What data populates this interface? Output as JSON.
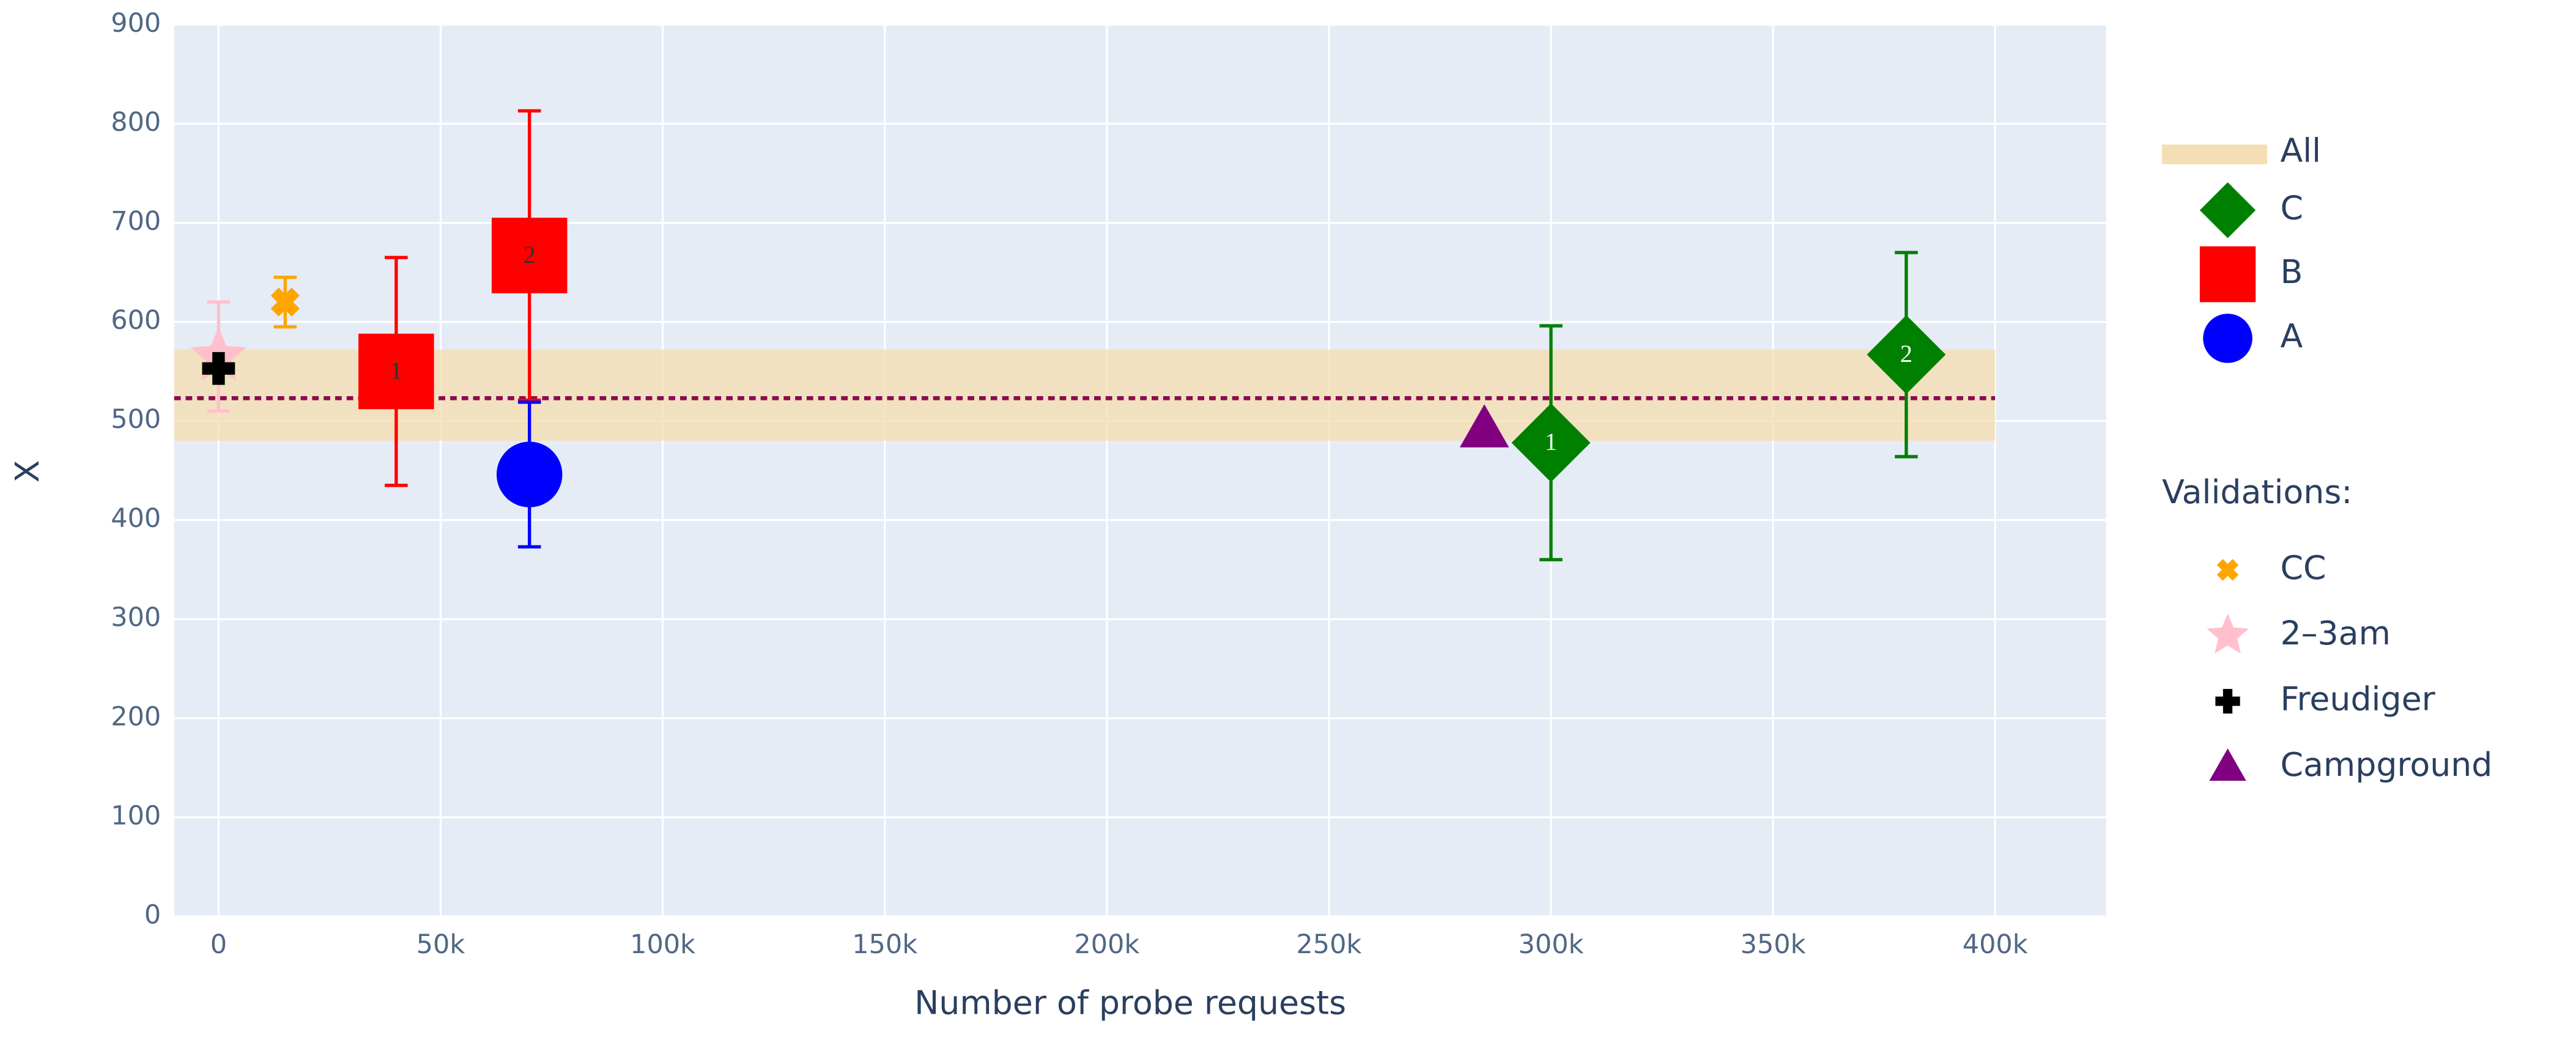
{
  "chart_data": {
    "type": "scatter",
    "x_label": "Number of probe requests",
    "y_label": "X",
    "xlim": [
      -10000,
      425000
    ],
    "ylim": [
      0,
      900
    ],
    "xticks": [
      0,
      {
        "value": 50000,
        "label": "50k"
      },
      {
        "value": 100000,
        "label": "100k"
      },
      {
        "value": 150000,
        "label": "150k"
      },
      {
        "value": 200000,
        "label": "200k"
      },
      {
        "value": 250000,
        "label": "250k"
      },
      {
        "value": 300000,
        "label": "300k"
      },
      {
        "value": 350000,
        "label": "350k"
      },
      {
        "value": 400000,
        "label": "400k"
      }
    ],
    "yticks": [
      0,
      100,
      200,
      300,
      400,
      500,
      600,
      700,
      800,
      900
    ],
    "grid": true,
    "band": {
      "name": "All",
      "color": "#f5deb3",
      "line_color": "#8b0a50",
      "mean": 523,
      "low": 480,
      "high": 572,
      "x_range": [
        -10000,
        400000
      ]
    },
    "legend_title": "Validations:",
    "series": [
      {
        "name": "C",
        "color": "#008000",
        "symbol": "diamond",
        "size": 24,
        "x": [
          300000,
          380000
        ],
        "values": [
          478,
          567
        ],
        "error": [
          118,
          103
        ],
        "labels": [
          "1",
          "2"
        ],
        "label_color": "#ffffff",
        "validation": false
      },
      {
        "name": "B",
        "color": "#ff0000",
        "symbol": "square",
        "size": 23,
        "x": [
          40000,
          70000
        ],
        "values": [
          550,
          667
        ],
        "error": [
          115,
          146
        ],
        "labels": [
          "1",
          "2"
        ],
        "label_color": "#333333",
        "validation": false
      },
      {
        "name": "A",
        "color": "#0000ff",
        "symbol": "circle",
        "size": 20,
        "x": [
          70000
        ],
        "values": [
          446
        ],
        "error": [
          73
        ],
        "validation": false
      },
      {
        "name": "CC",
        "color": "#ffa500",
        "symbol": "x",
        "size": 9,
        "x": [
          15000
        ],
        "values": [
          620
        ],
        "error": [
          25
        ],
        "validation": true
      },
      {
        "name": "2–3am",
        "color": "#ffc0cb",
        "symbol": "star",
        "size": 18,
        "x": [
          0
        ],
        "values": [
          565
        ],
        "error": [
          55
        ],
        "validation": true
      },
      {
        "name": "Freudiger",
        "color": "#000000",
        "symbol": "cross",
        "size": 10,
        "x": [
          0
        ],
        "values": [
          553
        ],
        "validation": true
      },
      {
        "name": "Campground",
        "color": "#800080",
        "symbol": "triangle",
        "size": 15,
        "x": [
          285000
        ],
        "values": [
          492
        ],
        "validation": true
      }
    ]
  }
}
